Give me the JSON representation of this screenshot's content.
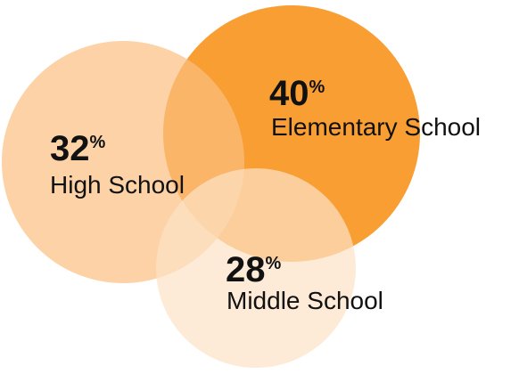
{
  "chart_data": {
    "type": "bubble",
    "unit": "%",
    "items": [
      {
        "label": "Elementary School",
        "value": 40,
        "color": "#F7941D",
        "opacity": 0.9
      },
      {
        "label": "High School",
        "value": 32,
        "color": "#FBBF80",
        "opacity": 0.7
      },
      {
        "label": "Middle School",
        "value": 28,
        "color": "#FCE3C7",
        "opacity": 0.7
      }
    ]
  }
}
